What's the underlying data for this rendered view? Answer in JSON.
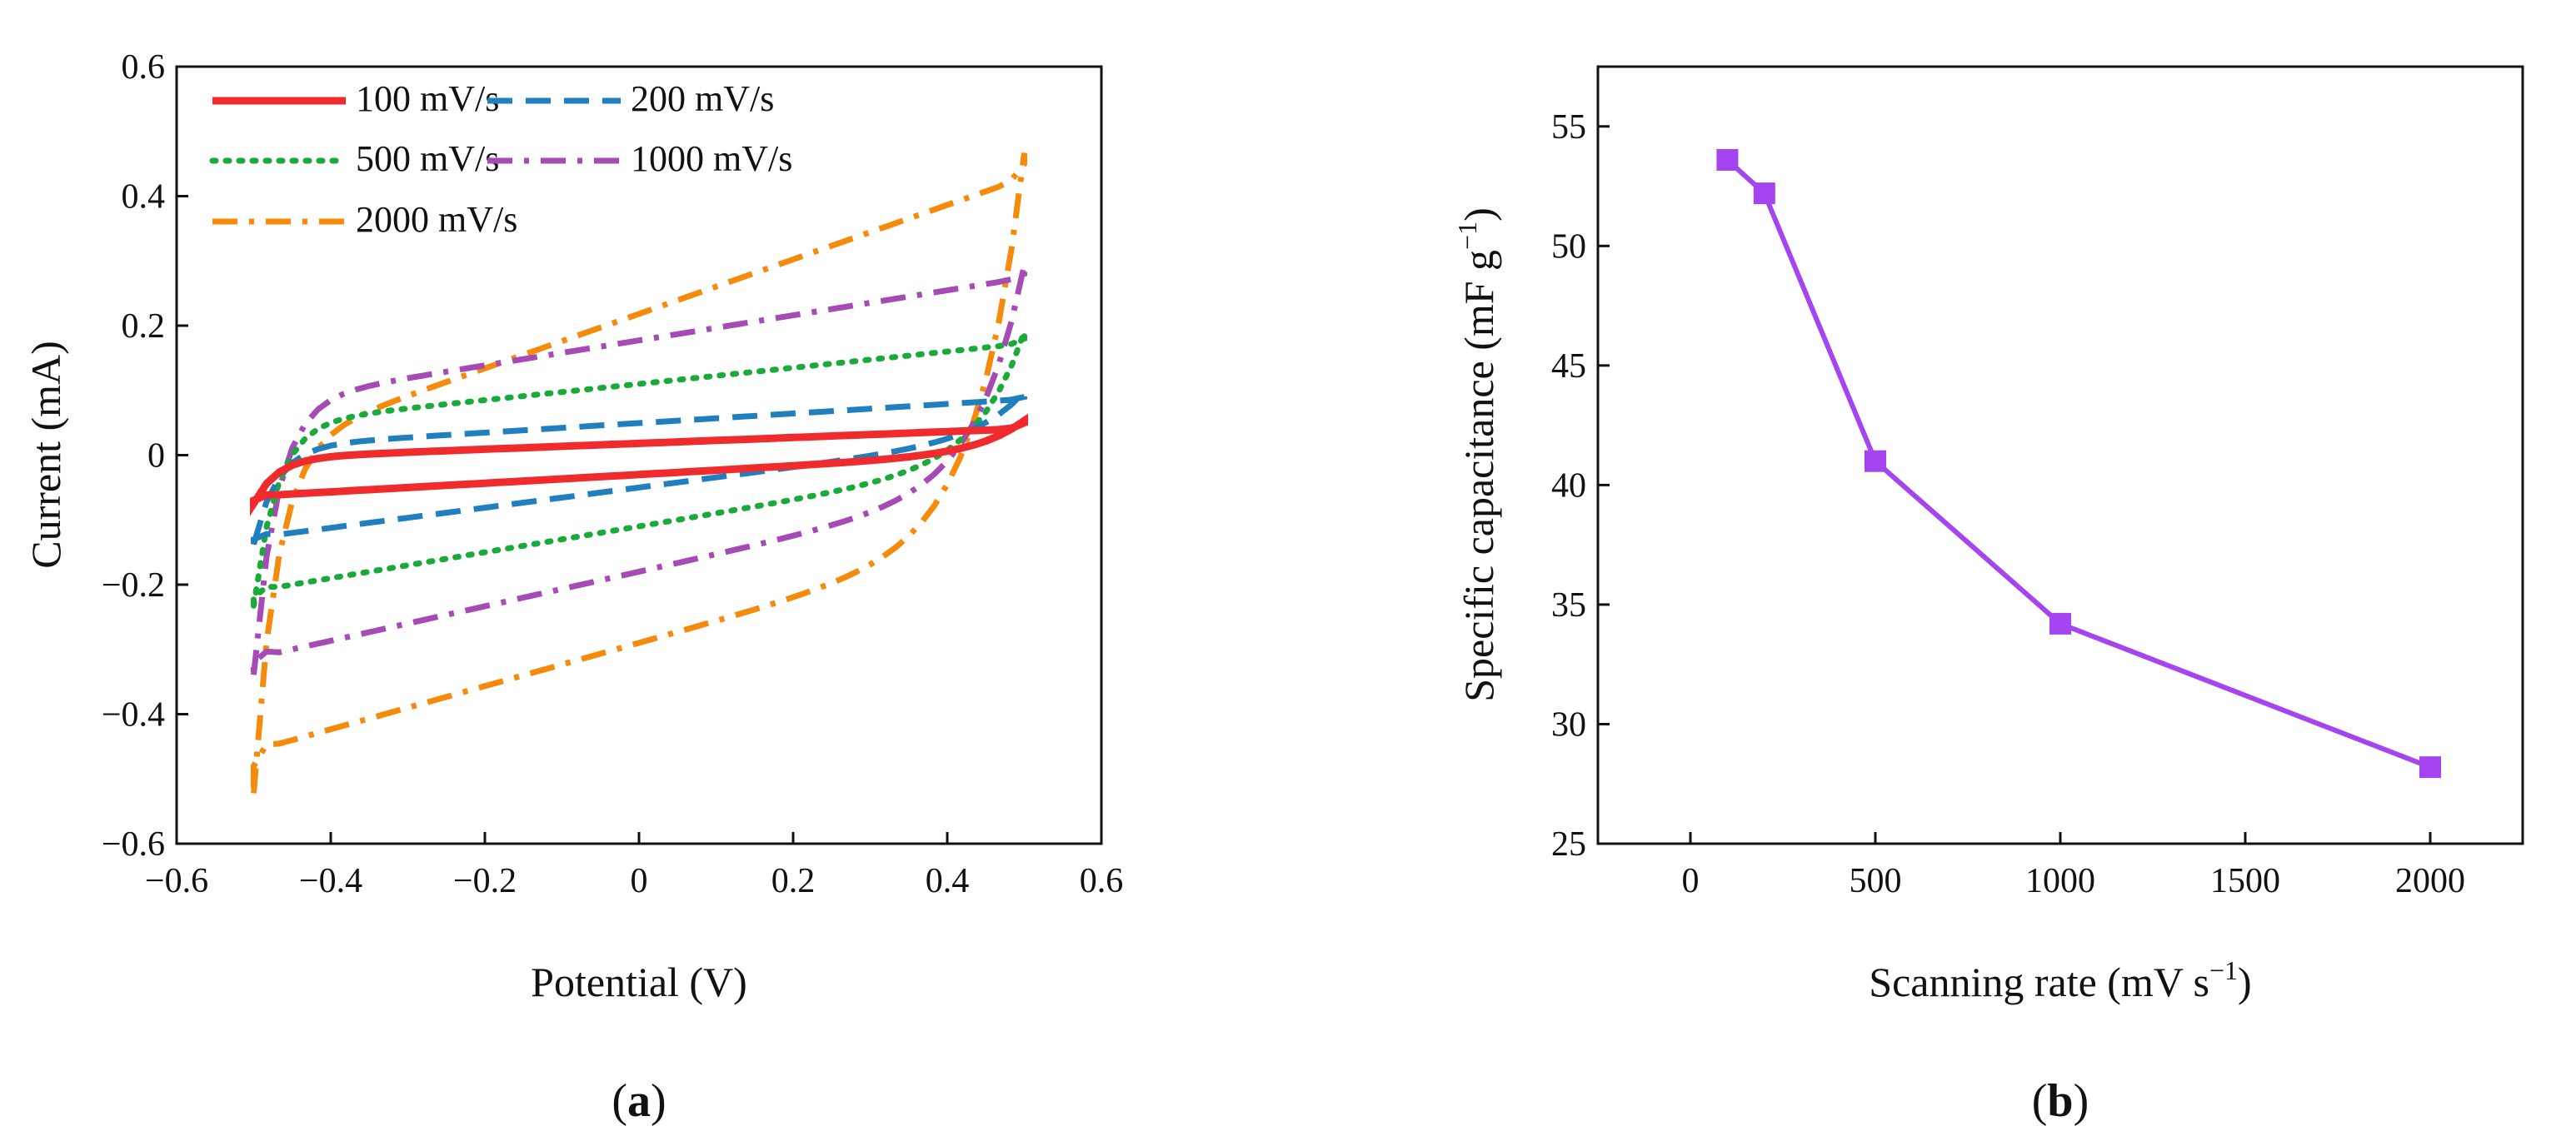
{
  "chart_data": [
    {
      "panel": "a",
      "type": "line",
      "subtype": "cyclic-voltammetry",
      "xlabel": "Potential (V)",
      "ylabel": "Current (mA)",
      "xlim": [
        -0.6,
        0.6
      ],
      "ylim": [
        -0.6,
        0.6
      ],
      "xticks": [
        -0.6,
        -0.4,
        -0.2,
        0,
        0.2,
        0.4,
        0.6
      ],
      "xtick_labels": [
        "−0.6",
        "−0.4",
        "−0.2",
        "0",
        "0.2",
        "0.4",
        "0.6"
      ],
      "yticks": [
        -0.6,
        -0.4,
        -0.2,
        0,
        0.2,
        0.4,
        0.6
      ],
      "ytick_labels": [
        "−0.6",
        "−0.4",
        "−0.2",
        "0",
        "0.2",
        "0.4",
        "0.6"
      ],
      "legend_position": "top-left",
      "series": [
        {
          "name": "100 mV/s",
          "color": "#ef2b2d",
          "style": "solid",
          "upper_start": -0.07,
          "upper_end": 0.05,
          "lower_start": -0.07,
          "lower_end": 0.05,
          "upper_left": 0.0,
          "lower_left": -0.06,
          "upper_right": 0.04,
          "lower_right": 0.0
        },
        {
          "name": "200 mV/s",
          "color": "#1f7fbf",
          "style": "dash",
          "upper_start": -0.13,
          "upper_end": 0.09,
          "lower_start": -0.13,
          "lower_end": 0.09,
          "upper_left": 0.02,
          "lower_left": -0.12,
          "upper_right": 0.085,
          "lower_right": 0.02
        },
        {
          "name": "500 mV/s",
          "color": "#1aaa3a",
          "style": "dot",
          "upper_start": -0.22,
          "upper_end": 0.18,
          "lower_start": -0.22,
          "lower_end": 0.18,
          "upper_left": 0.06,
          "lower_left": -0.2,
          "upper_right": 0.17,
          "lower_right": -0.02
        },
        {
          "name": "1000 mV/s",
          "color": "#a64bb5",
          "style": "dashdot",
          "upper_start": -0.32,
          "upper_end": 0.28,
          "lower_start": -0.32,
          "lower_end": 0.28,
          "upper_left": 0.1,
          "lower_left": -0.3,
          "upper_right": 0.27,
          "lower_right": -0.06
        },
        {
          "name": "2000 mV/s",
          "color": "#f58a0b",
          "style": "dashdot",
          "upper_start": -0.48,
          "upper_end": 0.45,
          "lower_start": -0.48,
          "lower_end": 0.45,
          "upper_left": 0.05,
          "lower_left": -0.44,
          "upper_right": 0.42,
          "lower_right": -0.14
        }
      ]
    },
    {
      "panel": "b",
      "type": "line",
      "xlabel": "Scanning rate (mV s",
      "xlabel_sup": "−1",
      "xlabel_end": ")",
      "ylabel": "Specific capacitance (mF g",
      "ylabel_sup": "−1",
      "ylabel_end": ")",
      "xlim": [
        -250,
        2250
      ],
      "ylim": [
        25,
        57.5
      ],
      "xticks": [
        0,
        500,
        1000,
        1500,
        2000
      ],
      "xtick_labels": [
        "0",
        "500",
        "1000",
        "1500",
        "2000"
      ],
      "yticks": [
        25,
        30,
        35,
        40,
        45,
        50,
        55
      ],
      "ytick_labels": [
        "25",
        "30",
        "35",
        "40",
        "45",
        "50",
        "55"
      ],
      "series": [
        {
          "name": "Specific capacitance",
          "color": "#a545f2",
          "marker": "square",
          "x": [
            100,
            200,
            500,
            1000,
            2000
          ],
          "y": [
            53.6,
            52.2,
            41.0,
            34.2,
            28.2
          ]
        }
      ]
    }
  ],
  "labels": {
    "panel_a_open": "(",
    "panel_a": "a",
    "panel_a_close": ")",
    "panel_b_open": "(",
    "panel_b": "b",
    "panel_b_close": ")"
  }
}
